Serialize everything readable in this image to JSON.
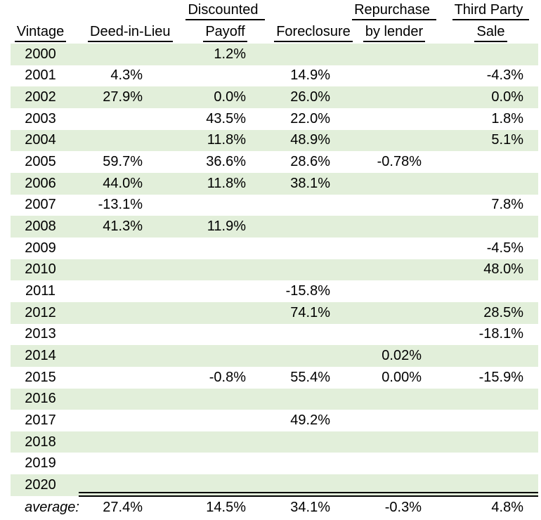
{
  "header": {
    "line1": [
      "",
      "",
      "Discounted",
      "",
      "Repurchase",
      "Third Party"
    ],
    "line2": [
      "Vintage",
      "Deed-in-Lieu",
      "Payoff",
      "Foreclosure",
      "by lender",
      "Sale"
    ]
  },
  "chart_data": {
    "type": "table",
    "columns": [
      "Vintage",
      "Deed-in-Lieu",
      "Discounted Payoff",
      "Foreclosure",
      "Repurchase by lender",
      "Third Party Sale"
    ],
    "rows": [
      [
        "2000",
        "",
        "1.2%",
        "",
        "",
        ""
      ],
      [
        "2001",
        "4.3%",
        "",
        "14.9%",
        "",
        "-4.3%"
      ],
      [
        "2002",
        "27.9%",
        "0.0%",
        "26.0%",
        "",
        "0.0%"
      ],
      [
        "2003",
        "",
        "43.5%",
        "22.0%",
        "",
        "1.8%"
      ],
      [
        "2004",
        "",
        "11.8%",
        "48.9%",
        "",
        "5.1%"
      ],
      [
        "2005",
        "59.7%",
        "36.6%",
        "28.6%",
        "-0.78%",
        ""
      ],
      [
        "2006",
        "44.0%",
        "11.8%",
        "38.1%",
        "",
        ""
      ],
      [
        "2007",
        "-13.1%",
        "",
        "",
        "",
        "7.8%"
      ],
      [
        "2008",
        "41.3%",
        "11.9%",
        "",
        "",
        ""
      ],
      [
        "2009",
        "",
        "",
        "",
        "",
        "-4.5%"
      ],
      [
        "2010",
        "",
        "",
        "",
        "",
        "48.0%"
      ],
      [
        "2011",
        "",
        "",
        "-15.8%",
        "",
        ""
      ],
      [
        "2012",
        "",
        "",
        "74.1%",
        "",
        "28.5%"
      ],
      [
        "2013",
        "",
        "",
        "",
        "",
        "-18.1%"
      ],
      [
        "2014",
        "",
        "",
        "",
        "0.02%",
        ""
      ],
      [
        "2015",
        "",
        "-0.8%",
        "55.4%",
        "0.00%",
        "-15.9%"
      ],
      [
        "2016",
        "",
        "",
        "",
        "",
        ""
      ],
      [
        "2017",
        "",
        "",
        "49.2%",
        "",
        ""
      ],
      [
        "2018",
        "",
        "",
        "",
        "",
        ""
      ],
      [
        "2019",
        "",
        "",
        "",
        "",
        ""
      ],
      [
        "2020",
        "",
        "",
        "",
        "",
        ""
      ]
    ],
    "average_row": [
      "average:",
      "27.4%",
      "14.5%",
      "34.1%",
      "-0.3%",
      "4.8%"
    ],
    "layout": {
      "row_banding": "alternating",
      "banded_years": "even",
      "grid": "off",
      "values_alignment": "right",
      "headers_underlined": true
    }
  },
  "colors": {
    "band_green": "#e2efda",
    "background": "#ffffff",
    "text": "#000000",
    "rule": "#000000"
  }
}
